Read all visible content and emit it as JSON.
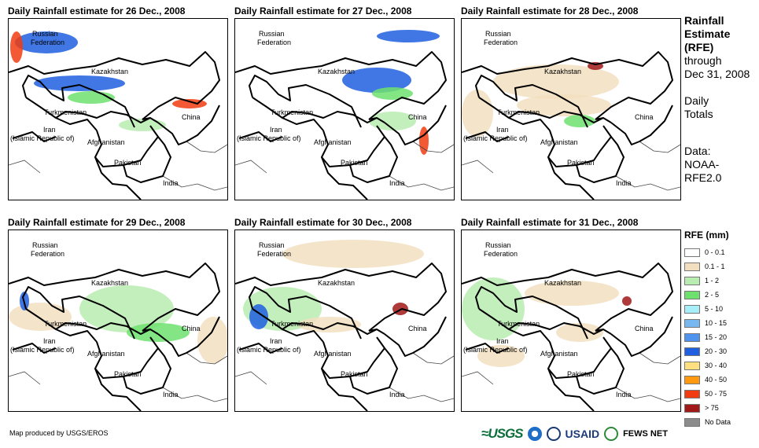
{
  "panels": [
    {
      "title": "Daily Rainfall estimate for 26 Dec., 2008"
    },
    {
      "title": "Daily Rainfall estimate for 27 Dec., 2008"
    },
    {
      "title": "Daily Rainfall estimate for 28 Dec., 2008"
    },
    {
      "title": "Daily Rainfall estimate for 29 Dec., 2008"
    },
    {
      "title": "Daily Rainfall estimate for 30 Dec., 2008"
    },
    {
      "title": "Daily Rainfall estimate for 31 Dec., 2008"
    }
  ],
  "countries": {
    "russia_line1": "Russian",
    "russia_line2": "Federation",
    "kazakhstan": "Kazakhstan",
    "turkmenistan": "Turkmenistan",
    "iran_line1": "Iran",
    "iran_line2": "(Islamic Republic of)",
    "afghanistan": "Afghanistan",
    "pakistan": "Pakistan",
    "china": "China",
    "india": "India"
  },
  "info": {
    "title_line1": "Rainfall",
    "title_line2": "Estimate",
    "title_line3": "(RFE)",
    "through": "through",
    "date": "Dec 31, 2008",
    "daily": "Daily",
    "totals": "Totals",
    "data_label": "Data:",
    "data_src1": "NOAA-",
    "data_src2": "RFE2.0"
  },
  "legend": {
    "title": "RFE (mm)",
    "items": [
      {
        "label": "0 - 0.1",
        "color": "#ffffff"
      },
      {
        "label": "0.1 - 1",
        "color": "#f2dfc0"
      },
      {
        "label": "1 - 2",
        "color": "#b8ecb0"
      },
      {
        "label": "2 - 5",
        "color": "#6ee06e"
      },
      {
        "label": "5 - 10",
        "color": "#a8eef8"
      },
      {
        "label": "10 - 15",
        "color": "#78b8f0"
      },
      {
        "label": "15 - 20",
        "color": "#4e94ee"
      },
      {
        "label": "20 - 30",
        "color": "#1f5fe0"
      },
      {
        "label": "30 - 40",
        "color": "#ffe080"
      },
      {
        "label": "40 - 50",
        "color": "#ff9a10"
      },
      {
        "label": "50 - 75",
        "color": "#f03c10"
      },
      {
        "label": "> 75",
        "color": "#a01818"
      },
      {
        "label": "No Data",
        "color": "#8c8c8c"
      }
    ]
  },
  "credit": "Map produced by USGS/EROS",
  "logos": {
    "usgs": "≈USGS",
    "usaid": "USAID",
    "fews": "FEWS NET"
  },
  "colors": {
    "tan": "#f2dfc0",
    "green": "#6ee06e",
    "lightgreen": "#b8ecb0",
    "blue": "#1f5fe0",
    "red": "#f03c10",
    "darkred": "#a01818"
  }
}
